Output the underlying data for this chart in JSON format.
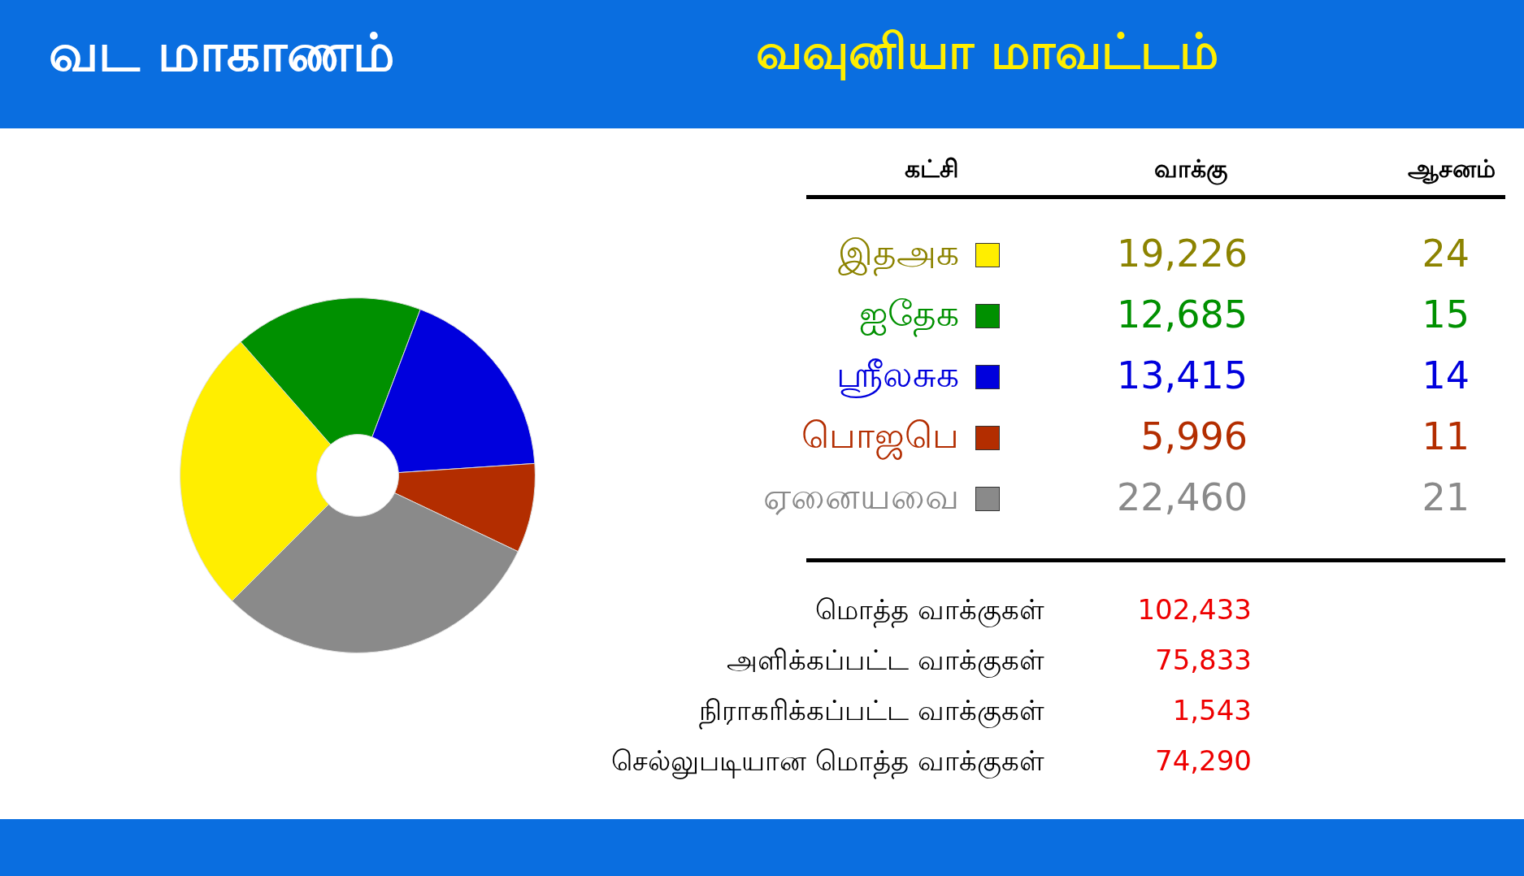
{
  "chart_data": [
    {
      "type": "donut",
      "title": "வட மாகாணம்",
      "subtitle": "வவுனியா மாவட்டம்",
      "categories": [
        "இதஅக",
        "ஐதேக",
        "ஸ்ரீலசுக",
        "பொஜபெ",
        "ஏனையவை"
      ],
      "values": [
        19226,
        12685,
        13415,
        5996,
        22460
      ],
      "colors": [
        "#ffee00",
        "#009000",
        "#0000dd",
        "#b32d00",
        "#8a8a8a"
      ],
      "value_labels": [
        "19,226",
        "12,685",
        "13,415",
        "5,996",
        "22,460"
      ],
      "legend": "right",
      "annotations": [
        "கட்சி",
        "வாக்கு"
      ]
    },
    {
      "type": "other",
      "title": "ஆசனம்",
      "categories": [
        null,
        null,
        null,
        null,
        null
      ],
      "values": [
        24,
        15,
        14,
        11,
        21
      ],
      "colors": [
        "#ffee00",
        "#009000",
        "#0000dd",
        "#b32d00",
        "#8a8a8a"
      ],
      "data_labels": true,
      "annotations": [
        "மொத்த வாக்குகள்",
        "102,433",
        "அளிக்கப்பட்ட வாக்குகள்",
        "75,833",
        "நிராகரிக்கப்பட்ட வாக்குகள்",
        "1,543",
        "செல்லுபடியான மொத்த வாக்குகள்",
        "74,290"
      ]
    }
  ]
}
